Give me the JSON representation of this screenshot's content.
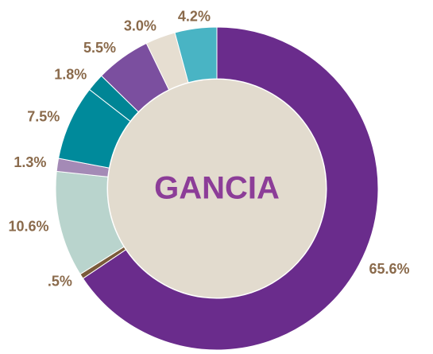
{
  "chart_data": {
    "type": "donut",
    "center_label": "GANCIA",
    "categories": [
      null,
      null,
      null,
      null,
      null,
      null,
      null,
      null,
      null
    ],
    "values": [
      65.6,
      0.5,
      10.6,
      1.3,
      7.5,
      1.8,
      5.5,
      3.0,
      4.2
    ],
    "value_labels": [
      "65.6%",
      ".5%",
      "10.6%",
      "1.3%",
      "7.5%",
      "1.8%",
      "5.5%",
      "3.0%",
      "4.2%"
    ],
    "colors": [
      "#6a2c8c",
      "#7a5a3a",
      "#b9d4cd",
      "#a48ab6",
      "#008a9b",
      "#008595",
      "#7b4f9f",
      "#e6ded1",
      "#49b4c4"
    ],
    "center_color": "#e2dbce",
    "center_text_color": "#8c3d98",
    "label_color": "#8a6a4b"
  }
}
